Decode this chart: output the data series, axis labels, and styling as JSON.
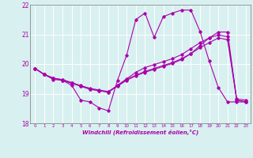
{
  "xlabel": "Windchill (Refroidissement éolien,°C)",
  "ylabel": "",
  "background_color": "#d8f0f0",
  "grid_color": "#ffffff",
  "line_color": "#aa00aa",
  "spine_color": "#888888",
  "xlim": [
    -0.5,
    23.5
  ],
  "ylim": [
    18,
    22
  ],
  "yticks": [
    18,
    19,
    20,
    21,
    22
  ],
  "xticks": [
    0,
    1,
    2,
    3,
    4,
    5,
    6,
    7,
    8,
    9,
    10,
    11,
    12,
    13,
    14,
    15,
    16,
    17,
    18,
    19,
    20,
    21,
    22,
    23
  ],
  "series": [
    {
      "x": [
        0,
        1,
        2,
        3,
        4,
        5,
        6,
        7,
        8,
        9,
        10,
        11,
        12,
        13,
        14,
        15,
        16,
        17,
        18,
        19,
        20,
        21,
        22,
        23
      ],
      "y": [
        19.85,
        19.65,
        19.48,
        19.45,
        19.28,
        18.78,
        18.72,
        18.52,
        18.42,
        19.45,
        20.3,
        21.5,
        21.72,
        20.9,
        21.6,
        21.72,
        21.82,
        21.82,
        21.1,
        20.1,
        19.2,
        18.72,
        18.72,
        18.72
      ]
    },
    {
      "x": [
        0,
        1,
        2,
        3,
        4,
        5,
        6,
        7,
        8,
        9,
        10,
        11,
        12,
        13,
        14,
        15,
        16,
        17,
        18,
        19,
        20,
        21,
        22,
        23
      ],
      "y": [
        19.85,
        19.65,
        19.52,
        19.45,
        19.35,
        19.25,
        19.15,
        19.1,
        19.05,
        19.28,
        19.5,
        19.72,
        19.88,
        19.98,
        20.08,
        20.18,
        20.32,
        20.52,
        20.72,
        20.88,
        20.98,
        20.92,
        18.82,
        18.78
      ]
    },
    {
      "x": [
        0,
        1,
        2,
        3,
        4,
        5,
        6,
        7,
        8,
        9,
        10,
        11,
        12,
        13,
        14,
        15,
        16,
        17,
        18,
        19,
        20,
        21,
        22,
        23
      ],
      "y": [
        19.85,
        19.65,
        19.52,
        19.47,
        19.37,
        19.27,
        19.18,
        19.12,
        19.07,
        19.27,
        19.48,
        19.62,
        19.75,
        19.85,
        19.95,
        20.05,
        20.18,
        20.35,
        20.55,
        20.72,
        20.88,
        20.82,
        18.78,
        18.72
      ]
    },
    {
      "x": [
        0,
        1,
        2,
        3,
        4,
        5,
        6,
        7,
        8,
        9,
        10,
        11,
        12,
        13,
        14,
        15,
        16,
        17,
        18,
        19,
        20,
        21,
        22,
        23
      ],
      "y": [
        19.85,
        19.65,
        19.52,
        19.47,
        19.37,
        19.25,
        19.15,
        19.1,
        19.05,
        19.25,
        19.45,
        19.6,
        19.72,
        19.82,
        19.92,
        20.02,
        20.15,
        20.35,
        20.62,
        20.88,
        21.08,
        21.08,
        18.78,
        18.72
      ]
    }
  ]
}
